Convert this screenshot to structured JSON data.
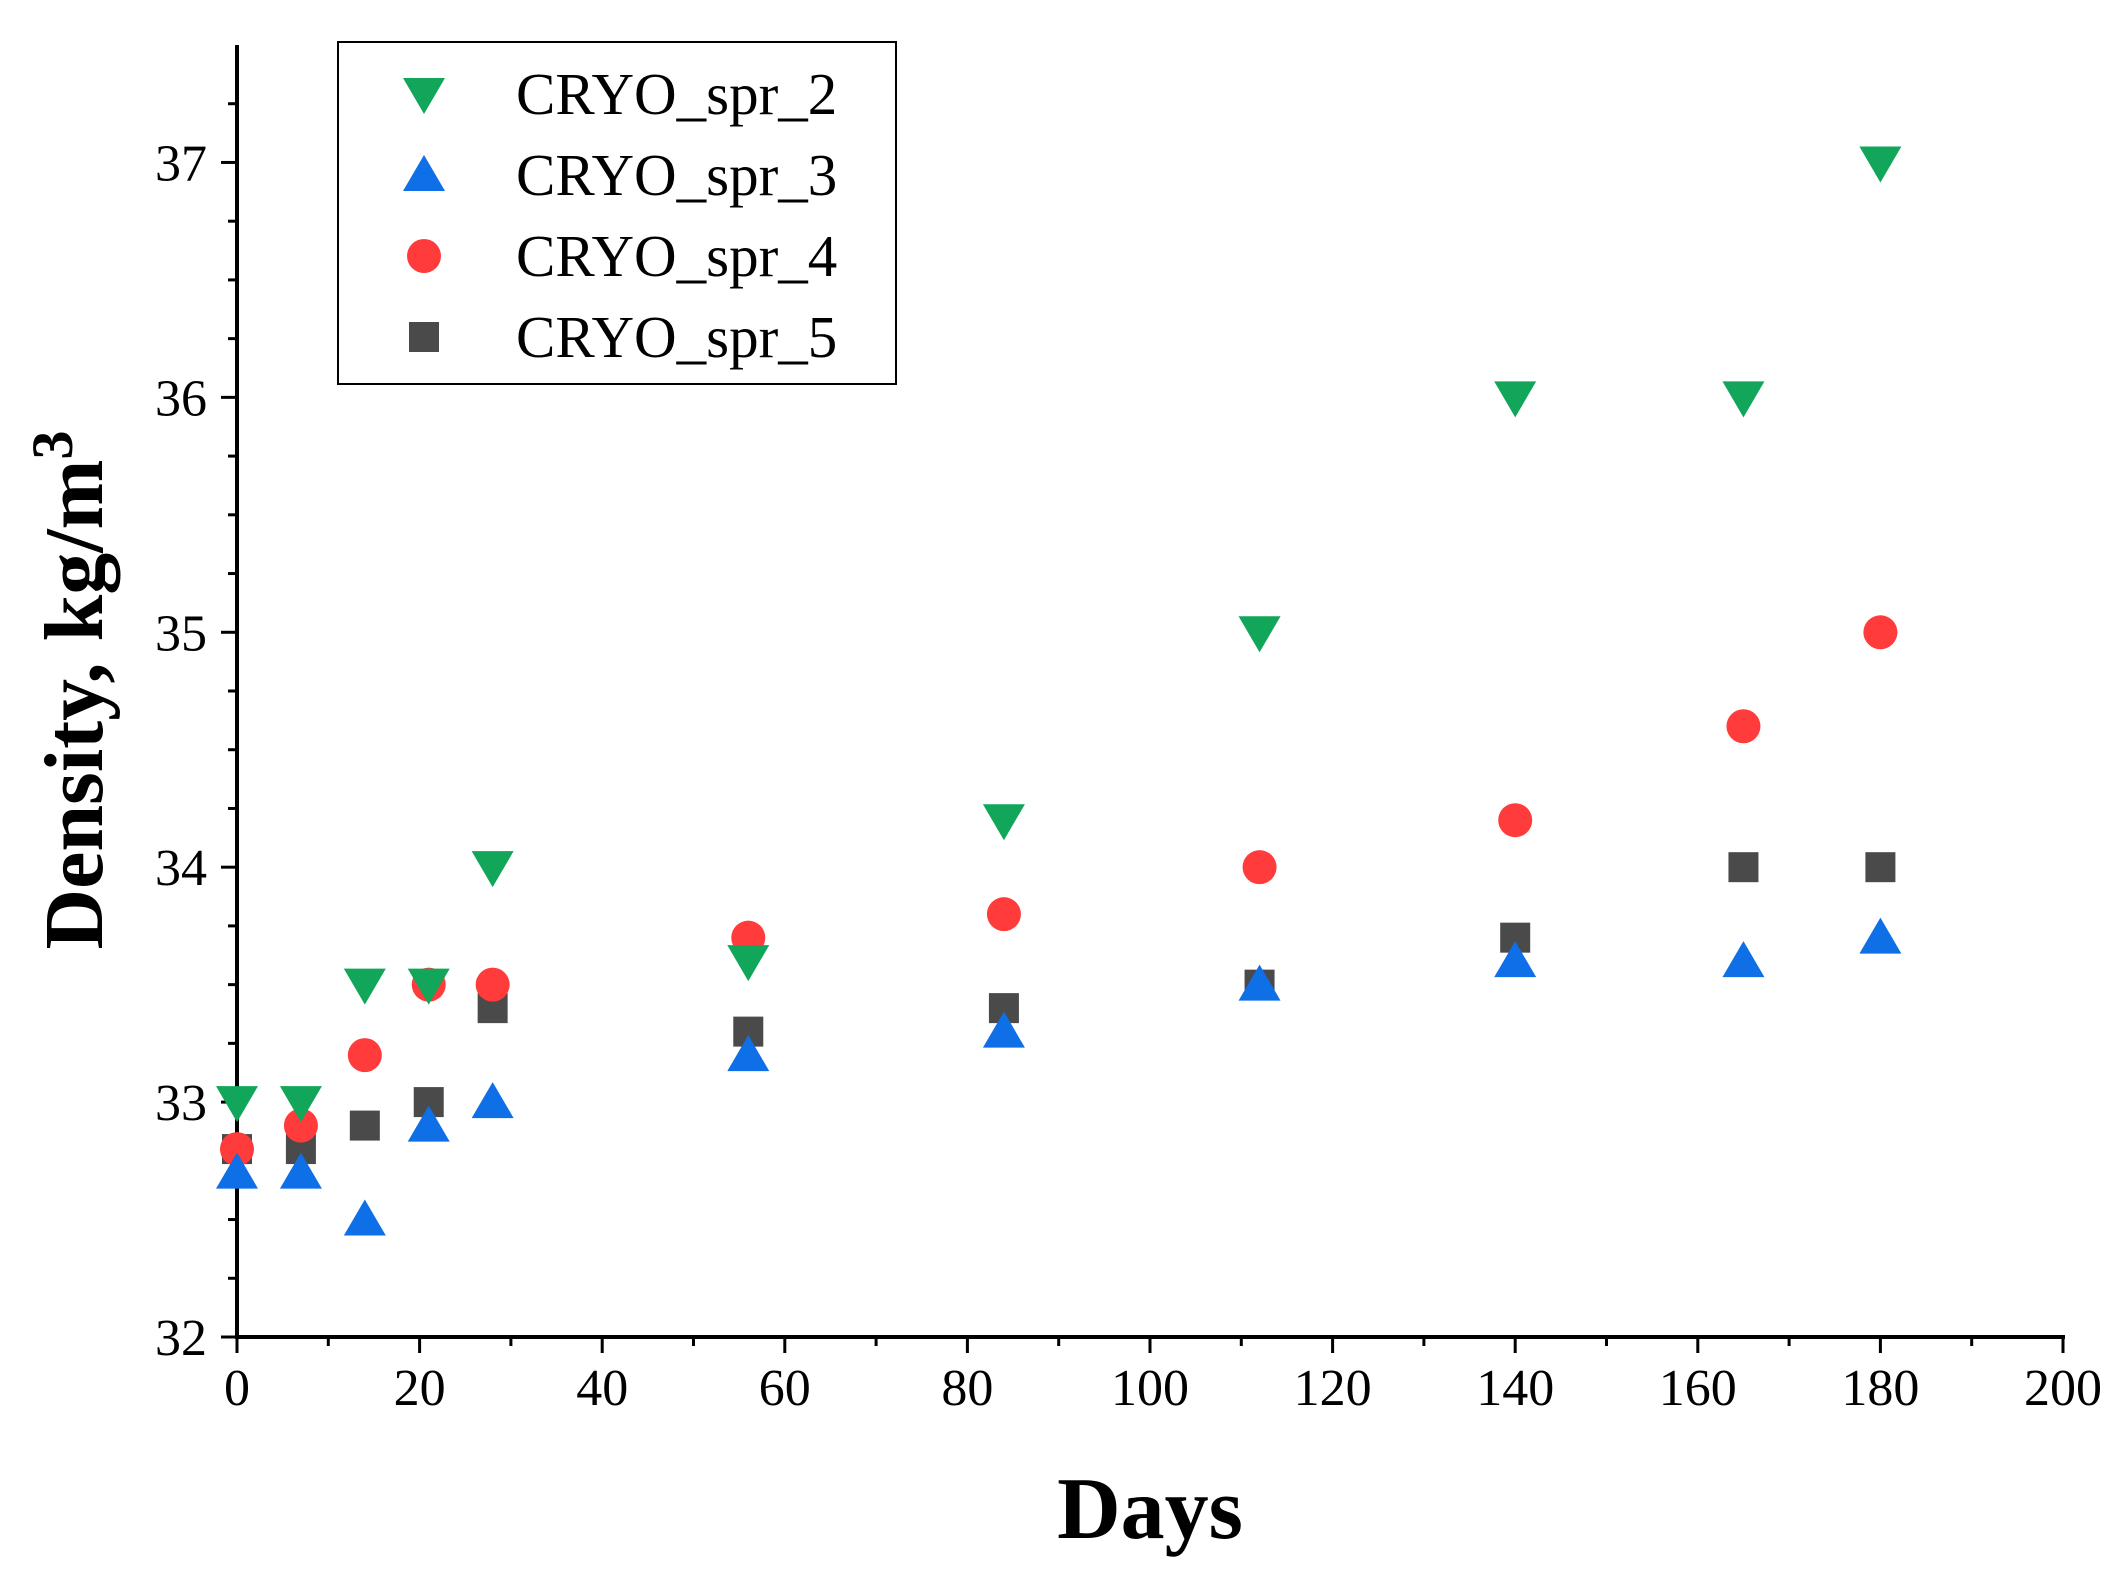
{
  "chart_data": {
    "type": "scatter",
    "title": "",
    "xlabel": "Days",
    "ylabel": "Density, kg/m",
    "ylabel_superscript": "3",
    "xlim": [
      0,
      200
    ],
    "ylim": [
      32,
      37.5
    ],
    "x_ticks": [
      0,
      20,
      40,
      60,
      80,
      100,
      120,
      140,
      160,
      180,
      200
    ],
    "y_ticks": [
      32,
      33,
      34,
      35,
      36,
      37
    ],
    "x_tick_labels": [
      "0",
      "20",
      "40",
      "60",
      "80",
      "100",
      "120",
      "140",
      "160",
      "180",
      "200"
    ],
    "y_tick_labels": [
      "32",
      "33",
      "34",
      "35",
      "36",
      "37"
    ],
    "grid": false,
    "legend_position": "top-left",
    "series": [
      {
        "name": "CRYO_spr_2",
        "marker": "triangle-down",
        "color": "#11A65A",
        "x": [
          0,
          7,
          14,
          21,
          28,
          56,
          84,
          112,
          140,
          165,
          180
        ],
        "y": [
          33.0,
          33.0,
          33.5,
          33.5,
          34.0,
          33.6,
          34.2,
          35.0,
          36.0,
          36.0,
          37.0
        ]
      },
      {
        "name": "CRYO_spr_3",
        "marker": "triangle-up",
        "color": "#0E6FE6",
        "x": [
          0,
          7,
          14,
          21,
          28,
          56,
          84,
          112,
          140,
          165,
          180
        ],
        "y": [
          32.7,
          32.7,
          32.5,
          32.9,
          33.0,
          33.2,
          33.3,
          33.5,
          33.6,
          33.6,
          33.7
        ]
      },
      {
        "name": "CRYO_spr_4",
        "marker": "circle",
        "color": "#FF3B3B",
        "x": [
          0,
          7,
          14,
          21,
          28,
          56,
          84,
          112,
          140,
          165,
          180
        ],
        "y": [
          32.8,
          32.9,
          33.2,
          33.5,
          33.5,
          33.7,
          33.8,
          34.0,
          34.2,
          34.6,
          35.0
        ]
      },
      {
        "name": "CRYO_spr_5",
        "marker": "square",
        "color": "#4A4A4A",
        "x": [
          0,
          7,
          14,
          21,
          28,
          56,
          84,
          112,
          140,
          165,
          180
        ],
        "y": [
          32.8,
          32.8,
          32.9,
          33.0,
          33.4,
          33.3,
          33.4,
          33.5,
          33.7,
          34.0,
          34.0
        ]
      }
    ]
  }
}
